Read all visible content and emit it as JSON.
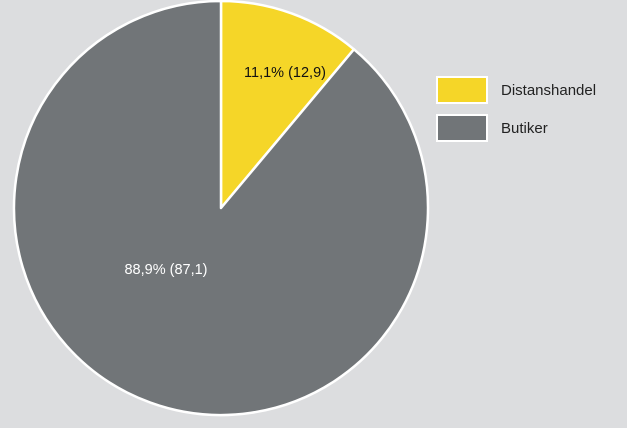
{
  "chart_data": {
    "type": "pie",
    "series": [
      {
        "name": "Distanshandel",
        "value": 11.1,
        "label": "11,1% (12,9)",
        "color": "#f5d628",
        "label_color": "#111111"
      },
      {
        "name": "Butiker",
        "value": 88.9,
        "label": "88,9% (87,1)",
        "color": "#717578",
        "label_color": "#ffffff"
      }
    ],
    "start_angle": "12 o'clock",
    "direction": "clockwise",
    "legend": {
      "position": "right",
      "entries": [
        "Distanshandel",
        "Butiker"
      ]
    },
    "background_color": "#dcdddf",
    "slice_border_color": "#ffffff"
  }
}
